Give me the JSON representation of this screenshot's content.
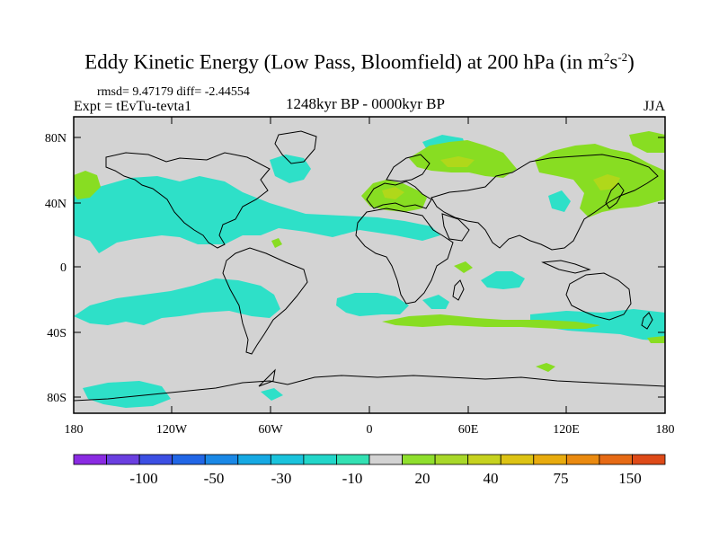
{
  "header": {
    "title": "Eddy Kinetic Energy (Low Pass, Bloomfield) at 200 hPa (in m",
    "title_unit_sup1": "2",
    "title_unit_s": "s",
    "title_unit_sup2": "-2",
    "title_close": ")",
    "stats": "rmsd= 9.47179 diff= -2.44554",
    "experiment": "Expt = tEvTu-tevta1",
    "period": "1248kyr BP - 0000kyr BP",
    "season": "JJA"
  },
  "map": {
    "lat_ticks": [
      "80N",
      "40N",
      "0",
      "40S",
      "80S"
    ],
    "lon_ticks": [
      "180",
      "120W",
      "60W",
      "0",
      "60E",
      "120E",
      "180"
    ]
  },
  "colorbar": {
    "colors": [
      "#8a2be2",
      "#6a3fe0",
      "#3c4fe3",
      "#2166e6",
      "#1a88e6",
      "#16a9e3",
      "#1ac3dc",
      "#22d6c9",
      "#33e1b3",
      "#d3d3d3",
      "#8fdf2d",
      "#a8d829",
      "#c6d21f",
      "#ddc314",
      "#e8ab0e",
      "#ea8a10",
      "#e66a15",
      "#de4a18"
    ],
    "labels": [
      "-100",
      "-50",
      "-30",
      "-10",
      "20",
      "40",
      "75",
      "150"
    ]
  },
  "colors": {
    "background": "#d3d3d3",
    "negative_anomaly": "#2ee0c8",
    "positive_anomaly": "#88dd22",
    "strong_positive": "#b0d81a",
    "coastline": "#000000"
  }
}
